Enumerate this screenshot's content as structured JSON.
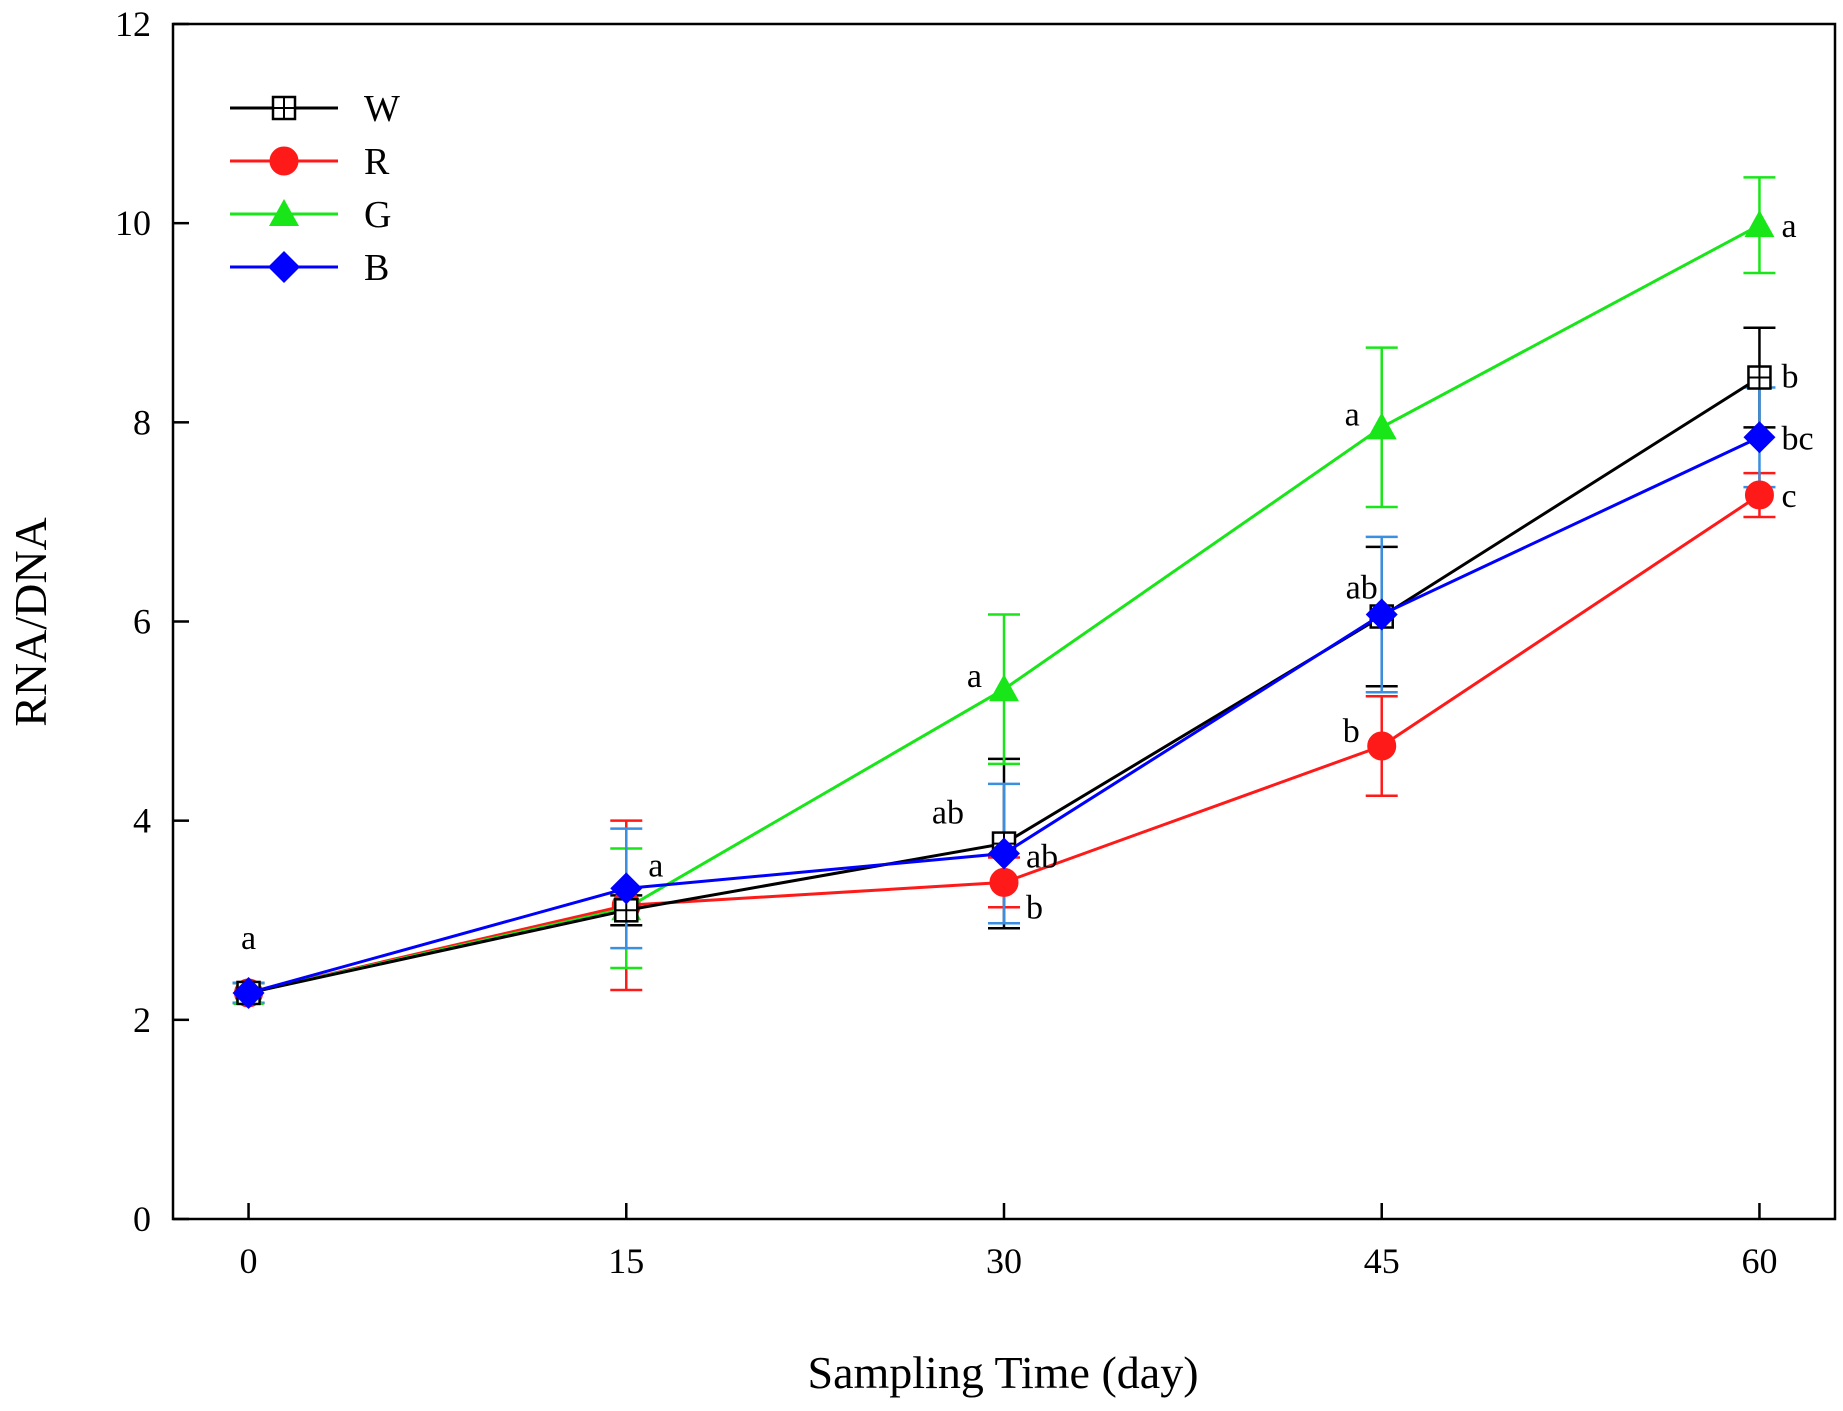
{
  "chart_data": {
    "type": "line",
    "xlabel": "Sampling Time (day)",
    "ylabel": "RNA/DNA",
    "x": [
      0,
      15,
      30,
      45,
      60
    ],
    "xticks": [
      "0",
      "15",
      "30",
      "45",
      "60"
    ],
    "xlim": [
      -3,
      63
    ],
    "ylim": [
      0,
      12
    ],
    "yticks": [
      "0",
      "2",
      "4",
      "6",
      "8",
      "10",
      "12"
    ],
    "grid": false,
    "legend_position": "top-left",
    "series": [
      {
        "name": "W",
        "color": "#000000",
        "marker": "square-cross",
        "values": [
          2.27,
          3.1,
          3.77,
          6.05,
          8.45
        ],
        "errors": [
          0.1,
          0.15,
          0.85,
          0.7,
          0.5
        ],
        "labels": [
          "",
          "",
          "ab",
          "",
          "b"
        ]
      },
      {
        "name": "R",
        "color": "#ff1a1a",
        "marker": "circle",
        "values": [
          2.27,
          3.15,
          3.38,
          4.75,
          7.27
        ],
        "errors": [
          0.1,
          0.85,
          0.25,
          0.5,
          0.22
        ],
        "labels": [
          "",
          "",
          "b",
          "b",
          "c"
        ]
      },
      {
        "name": "G",
        "color": "#19e619",
        "marker": "triangle",
        "values": [
          2.27,
          3.12,
          5.32,
          7.95,
          9.98
        ],
        "errors": [
          0.1,
          0.6,
          0.75,
          0.8,
          0.48
        ],
        "labels": [
          "",
          "",
          "a",
          "a",
          "a"
        ]
      },
      {
        "name": "B",
        "color": "#0000ff",
        "error_color": "#3a8fe0",
        "marker": "diamond",
        "values": [
          2.27,
          3.32,
          3.67,
          6.07,
          7.85
        ],
        "errors": [
          0.1,
          0.6,
          0.7,
          0.78,
          0.5
        ],
        "labels": [
          "a",
          "a",
          "ab",
          "ab",
          "bc"
        ]
      }
    ]
  }
}
